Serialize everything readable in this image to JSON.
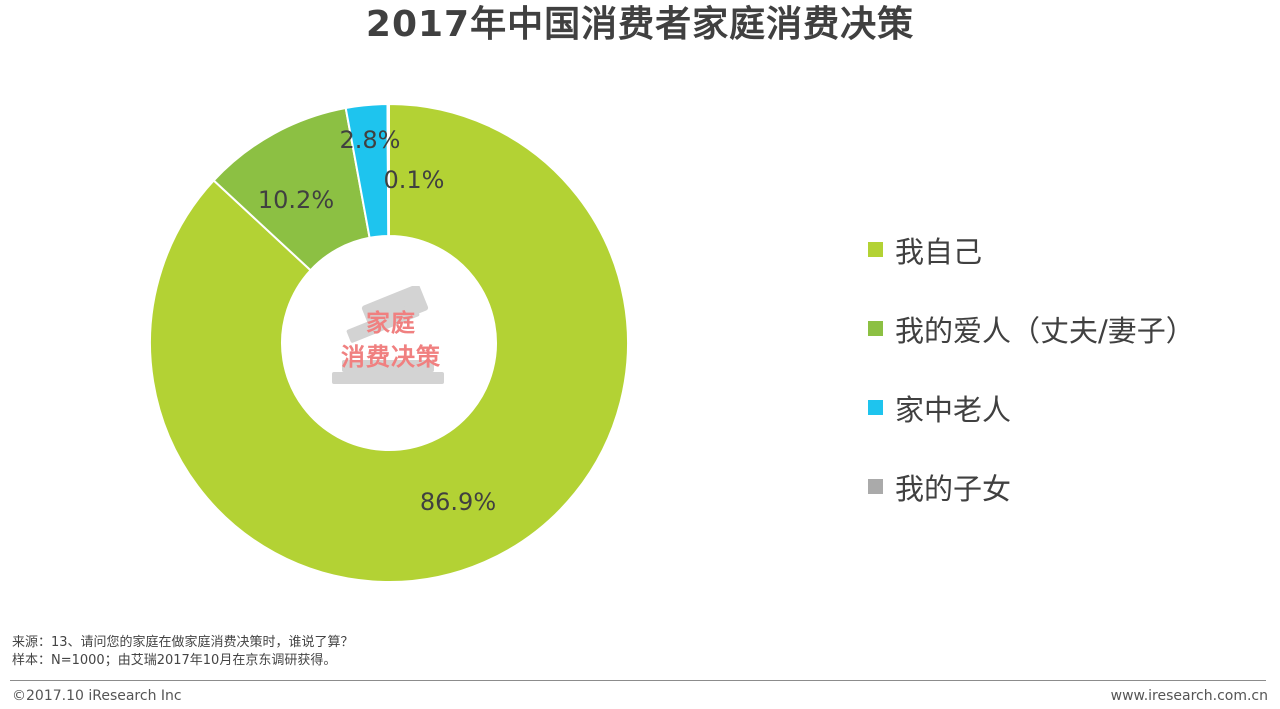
{
  "header": {
    "title": "2017年中国消费者家庭消费决策"
  },
  "chart_data": {
    "type": "pie",
    "title": "2017年中国消费者家庭消费决策",
    "donut": true,
    "center_label": [
      "家庭",
      "消费决策"
    ],
    "legend_position": "right",
    "slices": [
      {
        "label": "我自己",
        "value": 86.9,
        "value_label": "86.9%",
        "color": "#b3d234"
      },
      {
        "label": "我的爱人（丈夫/妻子）",
        "value": 10.2,
        "value_label": "10.2%",
        "color": "#8cc043"
      },
      {
        "label": "家中老人",
        "value": 2.8,
        "value_label": "2.8%",
        "color": "#1ec4ee"
      },
      {
        "label": "我的子女",
        "value": 0.1,
        "value_label": "0.1%",
        "color": "#aaaaaa"
      }
    ]
  },
  "footnote": {
    "source": "来源：13、请问您的家庭在做家庭消费决策时，谁说了算？",
    "sample": "样本：N=1000；由艾瑞2017年10月在京东调研获得。"
  },
  "footer": {
    "copyright": "©2017.10 iResearch Inc",
    "website": "www.iresearch.com.cn"
  }
}
